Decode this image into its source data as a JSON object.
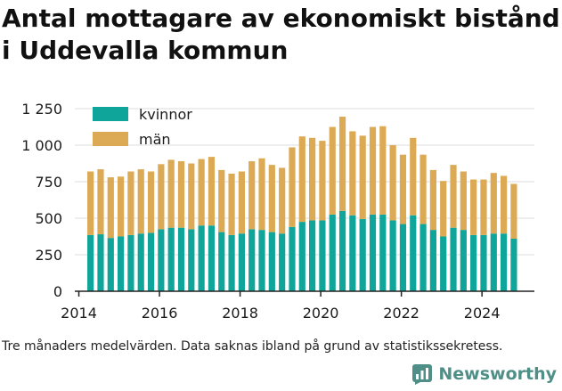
{
  "title": "Antal mottagare av ekonomiskt bistånd i Uddevalla kommun",
  "footnote": "Tre månaders medelvärden. Data saknas ibland på grund av statistikssekretess.",
  "brand": {
    "name": "Newsworthy",
    "icon": "newsworthy-logo-icon",
    "color": "#4f8f88"
  },
  "colors": {
    "kvinnor": "#10a59a",
    "man": "#dcaa55",
    "axis": "#222222",
    "grid": "#dddddd"
  },
  "chart_data": {
    "type": "bar",
    "stacked": true,
    "title": "Antal mottagare av ekonomiskt bistånd i Uddevalla kommun",
    "xlabel": "",
    "ylabel": "",
    "ylim": [
      0,
      1250
    ],
    "yticks": [
      0,
      250,
      500,
      750,
      1000,
      1250
    ],
    "ytick_labels": [
      "0",
      "250",
      "500",
      "750",
      "1 000",
      "1 250"
    ],
    "xlim": [
      2013.9,
      2025.3
    ],
    "xticks": [
      2014,
      2016,
      2018,
      2020,
      2022,
      2024
    ],
    "legend_position": "top-left",
    "x": [
      2014.29,
      2014.54,
      2014.79,
      2015.04,
      2015.29,
      2015.54,
      2015.79,
      2016.04,
      2016.29,
      2016.54,
      2016.79,
      2017.04,
      2017.29,
      2017.54,
      2017.79,
      2018.04,
      2018.29,
      2018.54,
      2018.79,
      2019.04,
      2019.29,
      2019.54,
      2019.79,
      2020.04,
      2020.29,
      2020.54,
      2020.79,
      2021.04,
      2021.29,
      2021.54,
      2021.79,
      2022.04,
      2022.29,
      2022.54,
      2022.79,
      2023.04,
      2023.29,
      2023.54,
      2023.79,
      2024.04,
      2024.29,
      2024.54,
      2024.79
    ],
    "series": [
      {
        "name": "kvinnor",
        "color": "#10a59a",
        "values": [
          385,
          390,
          365,
          375,
          385,
          395,
          400,
          425,
          435,
          435,
          425,
          450,
          450,
          405,
          385,
          395,
          425,
          420,
          405,
          395,
          440,
          475,
          485,
          485,
          525,
          550,
          520,
          495,
          525,
          525,
          485,
          460,
          520,
          460,
          420,
          375,
          435,
          420,
          385,
          385,
          395,
          395,
          360
        ]
      },
      {
        "name": "män",
        "color": "#dcaa55",
        "values": [
          435,
          445,
          415,
          410,
          435,
          440,
          420,
          445,
          465,
          455,
          450,
          455,
          470,
          425,
          420,
          425,
          465,
          490,
          460,
          450,
          545,
          585,
          565,
          545,
          600,
          645,
          575,
          570,
          600,
          605,
          515,
          475,
          530,
          475,
          410,
          380,
          430,
          400,
          380,
          380,
          415,
          395,
          375
        ]
      }
    ]
  }
}
